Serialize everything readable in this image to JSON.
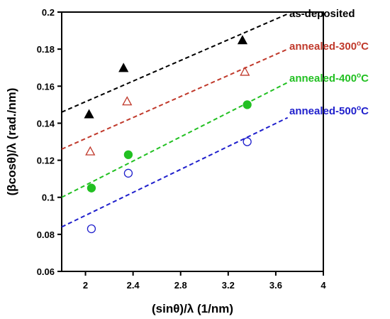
{
  "chart_data": {
    "type": "scatter",
    "title": "",
    "xlabel": "(sinθ)/λ (1/nm)",
    "ylabel": "(βcosθ)/λ (rad./nm)",
    "xlim": [
      1.8,
      4.0
    ],
    "ylim": [
      0.06,
      0.2
    ],
    "xticks": [
      2,
      2.4,
      2.8,
      3.2,
      3.6,
      4
    ],
    "xtick_labels": [
      "2",
      "2.4",
      "2.8",
      "3.2",
      "3.6",
      "4"
    ],
    "yticks": [
      0.06,
      0.08,
      0.1,
      0.12,
      0.14,
      0.16,
      0.18,
      0.2
    ],
    "ytick_labels": [
      "0.06",
      "0.08",
      "0.1",
      "0.12",
      "0.14",
      "0.16",
      "0.18",
      "0.2"
    ],
    "grid": false,
    "legend_position": "right",
    "series": [
      {
        "name": "as-deposited",
        "label_main": "as-deposited",
        "label_sup": "",
        "label_tail": "",
        "color": "#000000",
        "marker": "filled-triangle",
        "points": [
          [
            2.03,
            0.145
          ],
          [
            2.32,
            0.17
          ],
          [
            3.32,
            0.185
          ]
        ],
        "fit": [
          [
            1.8,
            0.146
          ],
          [
            3.7,
            0.199
          ]
        ]
      },
      {
        "name": "annealed-300°C",
        "label_main": "annealed-300",
        "label_sup": "o",
        "label_tail": "C",
        "color": "#c0392b",
        "marker": "open-triangle",
        "points": [
          [
            2.04,
            0.125
          ],
          [
            2.35,
            0.152
          ],
          [
            3.34,
            0.168
          ]
        ],
        "fit": [
          [
            1.8,
            0.126
          ],
          [
            3.7,
            0.18
          ]
        ]
      },
      {
        "name": "annealed-400°C",
        "label_main": "annealed-400",
        "label_sup": "o",
        "label_tail": "C",
        "color": "#22c022",
        "marker": "filled-circle",
        "points": [
          [
            2.05,
            0.105
          ],
          [
            2.36,
            0.123
          ],
          [
            3.36,
            0.15
          ]
        ],
        "fit": [
          [
            1.8,
            0.1
          ],
          [
            3.7,
            0.162
          ]
        ]
      },
      {
        "name": "annealed-500°C",
        "label_main": "annealed-500",
        "label_sup": "o",
        "label_tail": "C",
        "color": "#1f1fcc",
        "marker": "open-circle",
        "points": [
          [
            2.05,
            0.083
          ],
          [
            2.36,
            0.113
          ],
          [
            3.36,
            0.13
          ]
        ],
        "fit": [
          [
            1.8,
            0.084
          ],
          [
            3.7,
            0.143
          ]
        ]
      }
    ]
  }
}
